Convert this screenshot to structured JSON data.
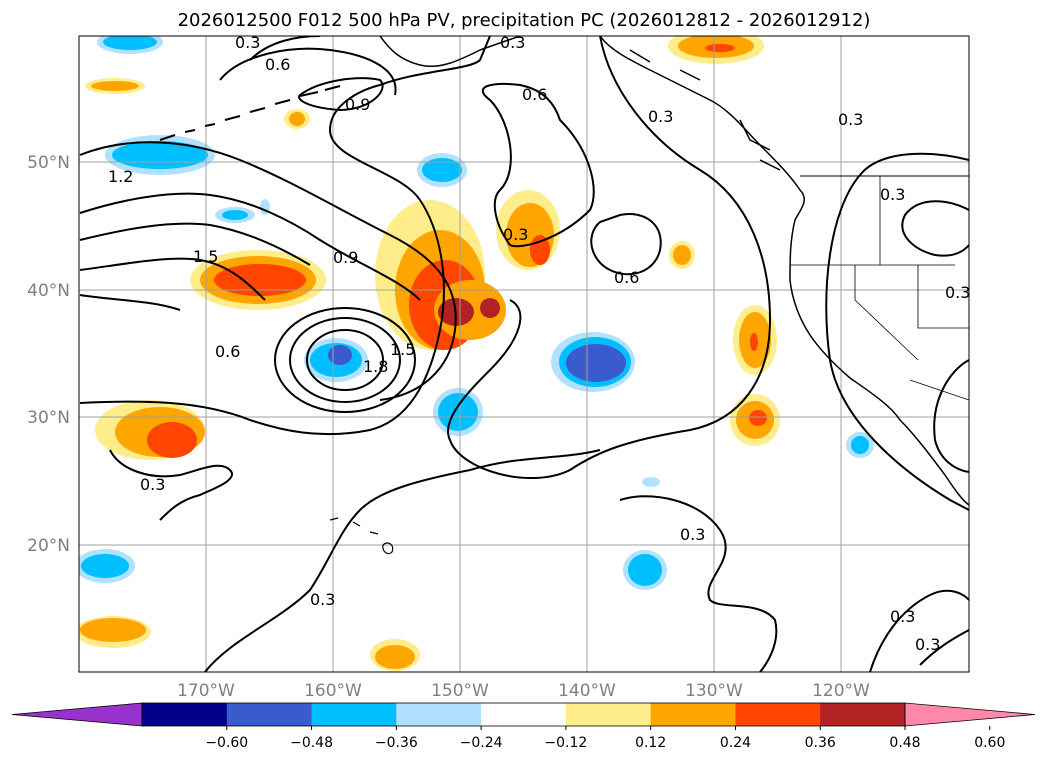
{
  "title": "2026012500 F012 500 hPa PV, precipitation PC (2026012812 - 2026012912)",
  "map": {
    "lat_labels": [
      "50°N",
      "40°N",
      "30°N",
      "20°N"
    ],
    "lon_labels": [
      "170°W",
      "160°W",
      "150°W",
      "140°W",
      "130°W",
      "120°W"
    ],
    "lat_range": [
      10,
      60
    ],
    "lon_range": [
      -180,
      -110
    ],
    "gridlines": true,
    "ocean_color": "#ffffff",
    "coastline_color": "#000000"
  },
  "pv_contours": {
    "line_color": "#000000",
    "labels": [
      "0.3",
      "0.6",
      "0.9",
      "1.2",
      "1.5",
      "1.8"
    ]
  },
  "colorbar": {
    "orientation": "horizontal",
    "extend": "both",
    "tick_labels": [
      "−0.60",
      "−0.48",
      "−0.36",
      "−0.24",
      "−0.12",
      "0.12",
      "0.24",
      "0.36",
      "0.48",
      "0.60"
    ],
    "colors": [
      "#9932cc",
      "#00008b",
      "#3a5bcd",
      "#00bfff",
      "#b0e2ff",
      "#ffffff",
      "#ffec8b",
      "#ffa500",
      "#ff4500",
      "#b22222",
      "#ff88aa"
    ]
  }
}
